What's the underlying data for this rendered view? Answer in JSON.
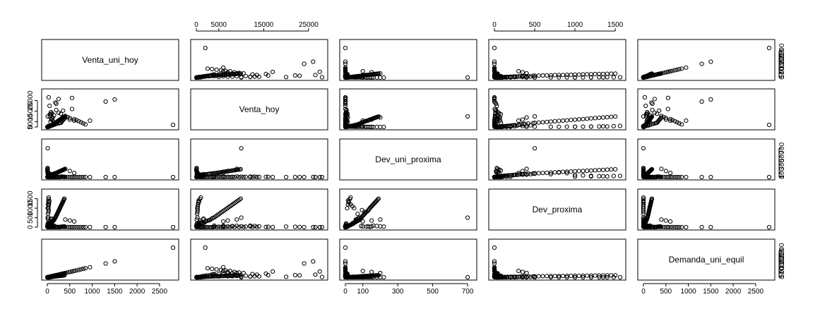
{
  "chart_data": {
    "type": "scatter",
    "kind": "scatterplot-matrix",
    "title": "",
    "variables": [
      "Venta_uni_hoy",
      "Venta_hoy",
      "Dev_uni_proxima",
      "Dev_proxima",
      "Demanda_uni_equil"
    ],
    "ranges": [
      [
        0,
        2800
      ],
      [
        0,
        28000
      ],
      [
        0,
        720
      ],
      [
        0,
        1560
      ],
      [
        0,
        2800
      ]
    ],
    "ticks": [
      [
        0,
        500,
        1000,
        1500,
        2000,
        2500
      ],
      [
        0,
        5000,
        15000,
        25000
      ],
      [
        0,
        100,
        300,
        500,
        700
      ],
      [
        0,
        500,
        1000,
        1500
      ],
      [
        0,
        500,
        1000,
        1500,
        2000,
        2500
      ]
    ],
    "tick_labels": [
      [
        "0",
        "500",
        "1000",
        "1500",
        "2000",
        "2500"
      ],
      [
        "0",
        "5000",
        "15000",
        "25000"
      ],
      [
        "0",
        "100",
        "300",
        "500",
        "700"
      ],
      [
        "0",
        "500",
        "1000",
        "1500"
      ],
      [
        "0",
        "500",
        "1000",
        "1500",
        "2000",
        "2500"
      ]
    ],
    "axis_placement": {
      "top": [
        1,
        3
      ],
      "bottom": [
        0,
        2,
        4
      ],
      "left": [
        1,
        3
      ],
      "right": [
        0,
        2,
        4
      ]
    },
    "grid": false,
    "legend": "none",
    "observations": [
      [
        10,
        60,
        2,
        5,
        8
      ],
      [
        12,
        120,
        4,
        10,
        8
      ],
      [
        15,
        180,
        8,
        20,
        7
      ],
      [
        18,
        150,
        10,
        30,
        8
      ],
      [
        20,
        220,
        5,
        15,
        15
      ],
      [
        25,
        300,
        15,
        50,
        10
      ],
      [
        28,
        350,
        20,
        80,
        8
      ],
      [
        30,
        400,
        12,
        40,
        18
      ],
      [
        32,
        380,
        25,
        100,
        7
      ],
      [
        35,
        500,
        30,
        120,
        5
      ],
      [
        38,
        450,
        18,
        60,
        20
      ],
      [
        40,
        600,
        40,
        200,
        0
      ],
      [
        42,
        520,
        35,
        150,
        7
      ],
      [
        45,
        700,
        22,
        90,
        23
      ],
      [
        48,
        650,
        50,
        250,
        0
      ],
      [
        50,
        800,
        28,
        110,
        22
      ],
      [
        55,
        900,
        60,
        350,
        0
      ],
      [
        60,
        750,
        32,
        130,
        28
      ],
      [
        65,
        1000,
        45,
        180,
        20
      ],
      [
        70,
        1100,
        38,
        160,
        32
      ],
      [
        75,
        1200,
        55,
        280,
        20
      ],
      [
        80,
        1300,
        42,
        200,
        38
      ],
      [
        85,
        1500,
        65,
        400,
        20
      ],
      [
        90,
        1400,
        48,
        220,
        42
      ],
      [
        95,
        1600,
        70,
        450,
        25
      ],
      [
        100,
        1800,
        52,
        240,
        48
      ],
      [
        105,
        1700,
        58,
        260,
        47
      ],
      [
        110,
        2000,
        62,
        300,
        48
      ],
      [
        120,
        2200,
        68,
        320,
        52
      ],
      [
        130,
        2500,
        72,
        340,
        58
      ],
      [
        140,
        2800,
        75,
        360,
        65
      ],
      [
        150,
        3000,
        80,
        380,
        70
      ],
      [
        160,
        3300,
        85,
        420,
        75
      ],
      [
        170,
        3600,
        88,
        480,
        82
      ],
      [
        180,
        3900,
        92,
        500,
        88
      ],
      [
        190,
        4200,
        95,
        550,
        95
      ],
      [
        200,
        4500,
        100,
        600,
        100
      ],
      [
        210,
        4800,
        105,
        650,
        105
      ],
      [
        220,
        5100,
        110,
        700,
        110
      ],
      [
        230,
        5400,
        115,
        750,
        115
      ],
      [
        240,
        5700,
        120,
        800,
        120
      ],
      [
        250,
        6000,
        128,
        850,
        122
      ],
      [
        260,
        6300,
        132,
        900,
        128
      ],
      [
        270,
        6600,
        136,
        950,
        133
      ],
      [
        280,
        6900,
        140,
        1000,
        138
      ],
      [
        290,
        7200,
        145,
        1050,
        140
      ],
      [
        300,
        7500,
        150,
        1100,
        148
      ],
      [
        310,
        7800,
        155,
        1150,
        155
      ],
      [
        320,
        8100,
        160,
        1200,
        158
      ],
      [
        330,
        8400,
        165,
        1250,
        163
      ],
      [
        340,
        8700,
        170,
        1300,
        168
      ],
      [
        350,
        9000,
        175,
        1350,
        172
      ],
      [
        360,
        9300,
        180,
        1400,
        178
      ],
      [
        370,
        9600,
        185,
        1450,
        182
      ],
      [
        380,
        9900,
        190,
        1500,
        188
      ],
      [
        5,
        40,
        150,
        30,
        0
      ],
      [
        8,
        90,
        120,
        25,
        0
      ],
      [
        6,
        200,
        100,
        40,
        0
      ],
      [
        10,
        150,
        130,
        50,
        0
      ],
      [
        12,
        300,
        90,
        60,
        0
      ],
      [
        15,
        100,
        60,
        400,
        0
      ],
      [
        20,
        250,
        80,
        500,
        0
      ],
      [
        18,
        180,
        70,
        700,
        0
      ],
      [
        25,
        220,
        110,
        800,
        0
      ],
      [
        30,
        300,
        95,
        900,
        0
      ],
      [
        22,
        260,
        50,
        1000,
        0
      ],
      [
        28,
        320,
        40,
        1100,
        0
      ],
      [
        35,
        380,
        30,
        1200,
        0
      ],
      [
        40,
        450,
        20,
        1300,
        0
      ],
      [
        45,
        500,
        15,
        1400,
        0
      ],
      [
        3,
        30,
        200,
        40,
        0
      ],
      [
        4,
        50,
        180,
        60,
        0
      ],
      [
        2,
        20,
        160,
        80,
        0
      ],
      [
        5,
        60,
        140,
        20,
        0
      ],
      [
        7,
        70,
        220,
        30,
        0
      ],
      [
        55,
        10000,
        8,
        50,
        60
      ],
      [
        60,
        12000,
        12,
        80,
        62
      ],
      [
        80,
        14000,
        6,
        40,
        82
      ],
      [
        100,
        13000,
        10,
        60,
        98
      ],
      [
        120,
        9000,
        14,
        70,
        122
      ],
      [
        150,
        11000,
        4,
        30,
        150
      ],
      [
        200,
        16000,
        6,
        20,
        198
      ],
      [
        250,
        13500,
        2,
        15,
        248
      ],
      [
        300,
        12500,
        3,
        10,
        302
      ],
      [
        350,
        15500,
        5,
        12,
        350
      ],
      [
        400,
        10500,
        2,
        8,
        398
      ],
      [
        450,
        9500,
        1,
        6,
        452
      ],
      [
        500,
        8500,
        1,
        5,
        500
      ],
      [
        550,
        17000,
        0,
        4,
        548
      ],
      [
        600,
        7500,
        0,
        3,
        602
      ],
      [
        650,
        6500,
        0,
        2,
        648
      ],
      [
        700,
        5500,
        0,
        1,
        702
      ],
      [
        750,
        4500,
        0,
        1,
        750
      ],
      [
        800,
        3500,
        0,
        0,
        798
      ],
      [
        850,
        2500,
        0,
        0,
        852
      ],
      [
        300,
        4000,
        10,
        20,
        300
      ],
      [
        320,
        5000,
        12,
        25,
        322
      ],
      [
        340,
        6000,
        8,
        30,
        338
      ],
      [
        360,
        7000,
        6,
        35,
        362
      ],
      [
        380,
        8000,
        5,
        40,
        380
      ],
      [
        950,
        6000,
        0,
        0,
        950
      ],
      [
        1300,
        24000,
        0,
        0,
        1300
      ],
      [
        1500,
        26000,
        0,
        0,
        1500
      ],
      [
        2800,
        2000,
        0,
        0,
        2800
      ],
      [
        550,
        27500,
        0,
        0,
        550
      ],
      [
        250,
        26500,
        0,
        0,
        250
      ],
      [
        150,
        4000,
        0,
        80,
        150
      ],
      [
        120,
        6000,
        0,
        70,
        120
      ],
      [
        100,
        8000,
        0,
        60,
        100
      ],
      [
        80,
        12000,
        0,
        40,
        80
      ],
      [
        50,
        20000,
        0,
        30,
        50
      ],
      [
        200,
        22000,
        0,
        20,
        200
      ],
      [
        180,
        23000,
        0,
        10,
        180
      ],
      [
        70,
        5000,
        4,
        20,
        70
      ],
      [
        90,
        7000,
        6,
        30,
        90
      ],
      [
        30,
        1000,
        30,
        1560,
        0
      ],
      [
        25,
        800,
        25,
        1480,
        0
      ],
      [
        20,
        600,
        20,
        1350,
        0
      ],
      [
        15,
        400,
        15,
        1200,
        0
      ],
      [
        10,
        200,
        10,
        1000,
        0
      ],
      [
        12,
        150,
        5,
        200,
        10
      ],
      [
        10,
        100,
        3,
        150,
        10
      ],
      [
        8,
        80,
        2,
        100,
        8
      ],
      [
        6,
        60,
        1,
        80,
        6
      ],
      [
        4,
        40,
        0,
        60,
        4
      ],
      [
        2,
        20,
        0,
        40,
        2
      ],
      [
        3,
        30,
        1,
        30,
        3
      ],
      [
        5,
        50,
        2,
        20,
        5
      ],
      [
        7,
        70,
        3,
        10,
        7
      ],
      [
        9,
        90,
        4,
        5,
        9
      ],
      [
        30,
        700,
        0,
        0,
        30
      ],
      [
        40,
        900,
        0,
        0,
        40
      ],
      [
        60,
        1100,
        0,
        0,
        60
      ],
      [
        90,
        1300,
        0,
        0,
        90
      ],
      [
        110,
        1500,
        0,
        0,
        110
      ],
      [
        140,
        2000,
        0,
        0,
        140
      ],
      [
        170,
        2400,
        0,
        0,
        170
      ],
      [
        210,
        3000,
        0,
        0,
        210
      ],
      [
        260,
        3500,
        0,
        0,
        260
      ],
      [
        280,
        3800,
        0,
        0,
        280
      ],
      [
        30,
        28000,
        0,
        0,
        30
      ],
      [
        10,
        10000,
        700,
        500,
        0
      ],
      [
        400,
        9000,
        200,
        400,
        400
      ],
      [
        500,
        7000,
        150,
        350,
        500
      ],
      [
        600,
        6000,
        100,
        300,
        600
      ]
    ]
  }
}
